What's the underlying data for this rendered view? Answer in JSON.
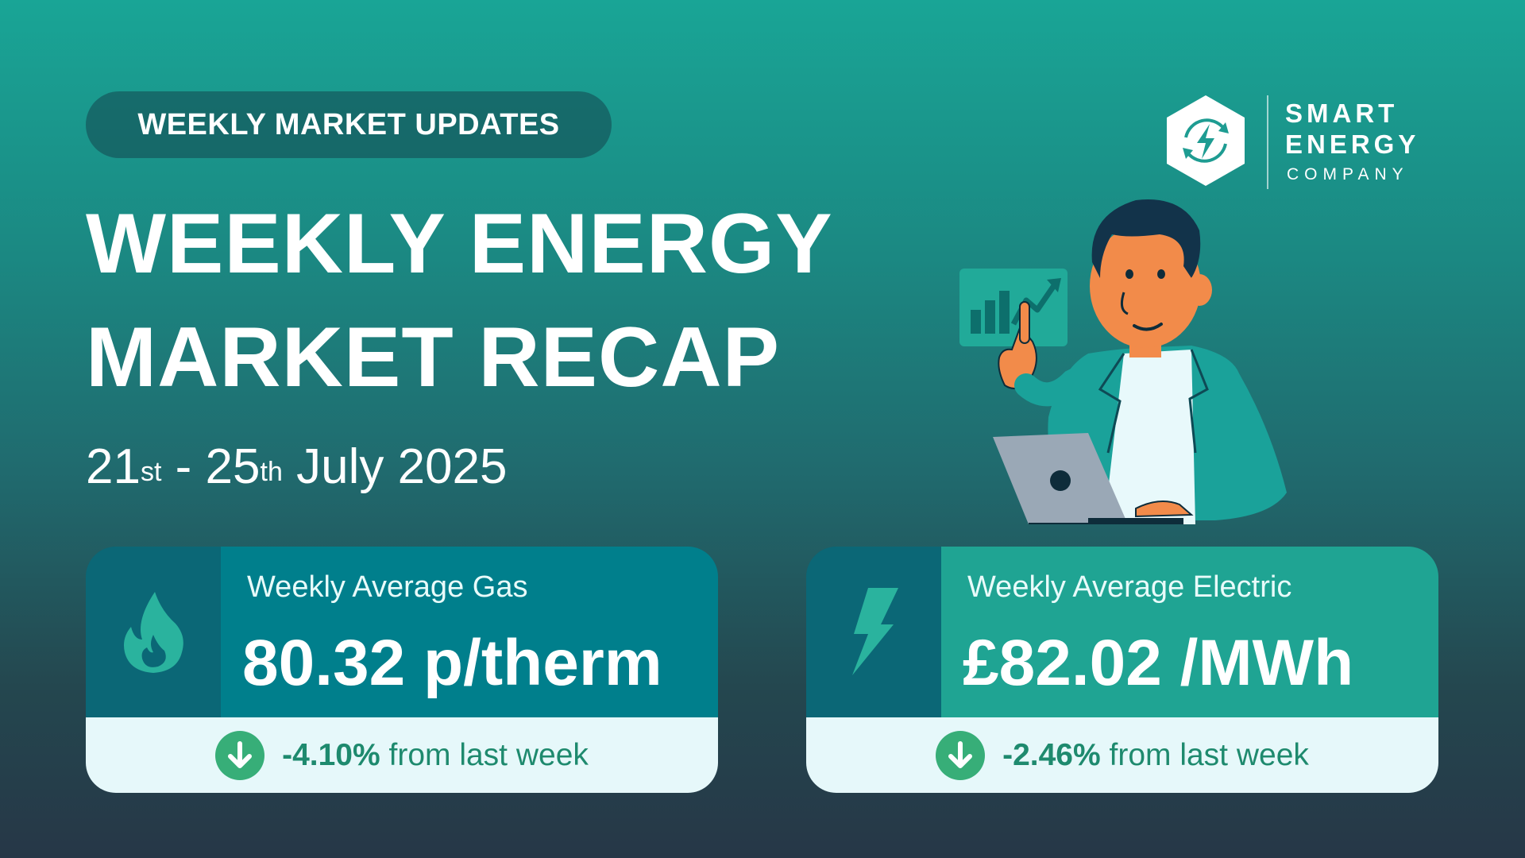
{
  "badge": "WEEKLY MARKET UPDATES",
  "title": {
    "line1": "WEEKLY ENERGY",
    "line2": "MARKET RECAP"
  },
  "date": {
    "start_day": "21",
    "start_suffix": "st",
    "separator": " - ",
    "end_day": "25",
    "end_suffix": "th",
    "month_year": " July 2025"
  },
  "logo": {
    "line1": "SMART",
    "line2": "ENERGY",
    "line3": "COMPANY",
    "icon": "hexagon-lightning-icon"
  },
  "gas": {
    "label": "Weekly Average Gas",
    "value": "80.32 p/therm",
    "change_pct": "-4.10%",
    "change_text": " from last week",
    "icon": "flame-icon"
  },
  "electric": {
    "label": "Weekly Average Electric",
    "value": "£82.02 /MWh",
    "change_pct": "-2.46%",
    "change_text": " from last week",
    "icon": "lightning-bolt-icon"
  },
  "colors": {
    "gradient_top": "#19a596",
    "gradient_bottom": "#263747",
    "gas_card": "#007f8c",
    "electric_card": "#1fa493",
    "icon_panel": "#0b6776",
    "change_bg": "#e6f8fa",
    "down_arrow": "#37ae78",
    "change_text": "#1e8a6e"
  }
}
